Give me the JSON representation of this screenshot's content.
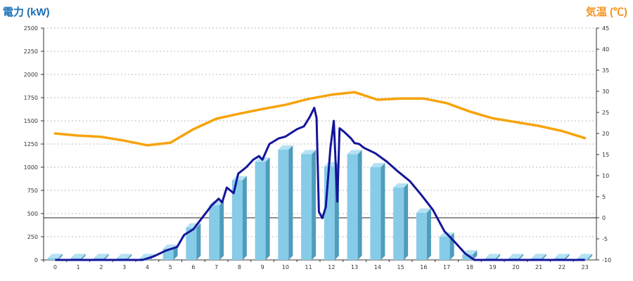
{
  "chart_data": {
    "type": "bar",
    "title": "",
    "y_left_label": "電力 (kW)",
    "y_right_label": "気温 (℃)",
    "y_left_range": [
      0,
      2500
    ],
    "y_left_ticks": [
      "0",
      "250",
      "500",
      "750",
      "1000",
      "1250",
      "1500",
      "1750",
      "2000",
      "2250",
      "2500"
    ],
    "y_right_range": [
      -10,
      45
    ],
    "y_right_ticks": [
      "-10",
      "-5",
      "0",
      "5",
      "10",
      "15",
      "20",
      "25",
      "30",
      "35",
      "40",
      "45"
    ],
    "categories": [
      "0",
      "1",
      "2",
      "3",
      "4",
      "5",
      "6",
      "7",
      "8",
      "9",
      "10",
      "11",
      "12",
      "13",
      "14",
      "15",
      "16",
      "17",
      "18",
      "19",
      "20",
      "21",
      "22",
      "23"
    ],
    "grid": true,
    "bars": {
      "axis": "left",
      "values": [
        20,
        20,
        20,
        20,
        20,
        120,
        350,
        590,
        860,
        1060,
        1190,
        1140,
        1010,
        1140,
        1000,
        780,
        510,
        250,
        60,
        20,
        20,
        20,
        20,
        20
      ]
    },
    "power_line": {
      "axis": "left",
      "points": [
        [
          0,
          0
        ],
        [
          1,
          0
        ],
        [
          2,
          0
        ],
        [
          3,
          0
        ],
        [
          3.8,
          0
        ],
        [
          4.3,
          40
        ],
        [
          4.8,
          100
        ],
        [
          5.3,
          140
        ],
        [
          5.6,
          270
        ],
        [
          6.0,
          330
        ],
        [
          6.4,
          460
        ],
        [
          6.8,
          590
        ],
        [
          7.1,
          660
        ],
        [
          7.25,
          620
        ],
        [
          7.45,
          780
        ],
        [
          7.75,
          720
        ],
        [
          7.95,
          930
        ],
        [
          8.3,
          1000
        ],
        [
          8.6,
          1080
        ],
        [
          8.85,
          1120
        ],
        [
          9.0,
          1080
        ],
        [
          9.3,
          1250
        ],
        [
          9.7,
          1310
        ],
        [
          10.0,
          1330
        ],
        [
          10.5,
          1410
        ],
        [
          10.8,
          1440
        ],
        [
          11.05,
          1540
        ],
        [
          11.25,
          1640
        ],
        [
          11.35,
          1530
        ],
        [
          11.45,
          520
        ],
        [
          11.6,
          450
        ],
        [
          11.75,
          570
        ],
        [
          11.95,
          1200
        ],
        [
          12.1,
          1500
        ],
        [
          12.25,
          630
        ],
        [
          12.35,
          1420
        ],
        [
          12.55,
          1380
        ],
        [
          12.85,
          1310
        ],
        [
          13.0,
          1260
        ],
        [
          13.2,
          1250
        ],
        [
          13.4,
          1210
        ],
        [
          13.9,
          1150
        ],
        [
          14.4,
          1060
        ],
        [
          14.9,
          950
        ],
        [
          15.4,
          850
        ],
        [
          15.9,
          700
        ],
        [
          16.4,
          540
        ],
        [
          16.9,
          310
        ],
        [
          17.4,
          180
        ],
        [
          17.8,
          70
        ],
        [
          18.2,
          0
        ],
        [
          19,
          0
        ],
        [
          20,
          0
        ],
        [
          21,
          0
        ],
        [
          22,
          0
        ],
        [
          23,
          0
        ]
      ]
    },
    "temperature_line": {
      "axis": "right",
      "points": [
        [
          0,
          20
        ],
        [
          1,
          19.5
        ],
        [
          2,
          19.2
        ],
        [
          3,
          18.3
        ],
        [
          4,
          17.2
        ],
        [
          5,
          17.8
        ],
        [
          6,
          21.0
        ],
        [
          7,
          23.5
        ],
        [
          8,
          24.7
        ],
        [
          9,
          25.8
        ],
        [
          10,
          26.8
        ],
        [
          11,
          28.2
        ],
        [
          12,
          29.2
        ],
        [
          13,
          29.8
        ],
        [
          14,
          28.0
        ],
        [
          15,
          28.3
        ],
        [
          16,
          28.3
        ],
        [
          17,
          27.2
        ],
        [
          18,
          25.2
        ],
        [
          19,
          23.6
        ],
        [
          20,
          22.7
        ],
        [
          21,
          21.8
        ],
        [
          22,
          20.6
        ],
        [
          23,
          18.9
        ]
      ]
    },
    "colors": {
      "bar_front": "#86cce9",
      "bar_side": "#4f9cbc",
      "bar_top": "#b5e1f4",
      "power_line": "#13159a",
      "temperature_line": "#f7a30a",
      "zero_line": "#222222",
      "grid": "#bbbbbb",
      "left_title": "#1a6fb5",
      "right_title": "#f5921e"
    }
  }
}
